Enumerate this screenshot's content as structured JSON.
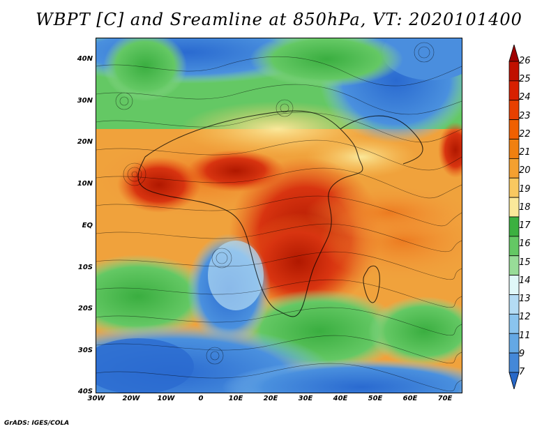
{
  "title": "WBPT [C] and Sreamline at 850hPa, VT: 2020101400",
  "footer": "GrADS: IGES/COLA",
  "lat_labels": [
    "40N",
    "30N",
    "20N",
    "10N",
    "EQ",
    "10S",
    "20S",
    "30S",
    "40S"
  ],
  "lon_labels": [
    "30W",
    "20W",
    "10W",
    "0",
    "10E",
    "20E",
    "30E",
    "40E",
    "50E",
    "60E",
    "70E"
  ],
  "colorbar": {
    "labels": [
      "26",
      "25",
      "24",
      "23",
      "22",
      "21",
      "20",
      "19",
      "18",
      "17",
      "16",
      "15",
      "14",
      "13",
      "12",
      "11",
      "9",
      "7"
    ],
    "colors": [
      "#a00000",
      "#c01000",
      "#d82000",
      "#e84000",
      "#f06000",
      "#f08010",
      "#f4a030",
      "#f8c860",
      "#fae89a",
      "#3cb040",
      "#64c864",
      "#98dc98",
      "#e0f8f8",
      "#b4dcf4",
      "#8ac4ee",
      "#64a8e4",
      "#4488d8",
      "#2868c8"
    ]
  }
}
